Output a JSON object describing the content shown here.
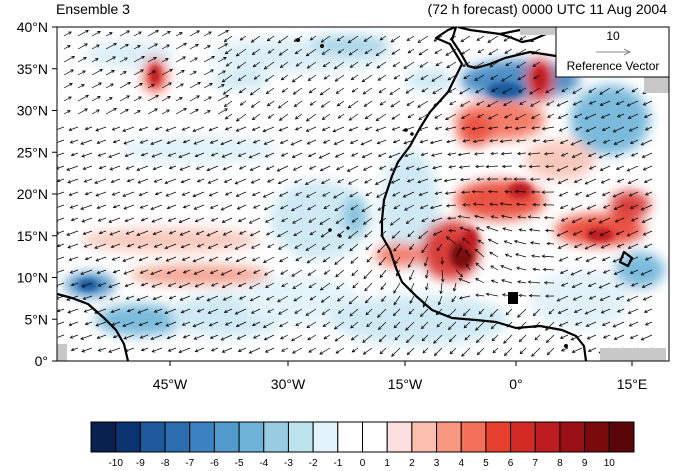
{
  "header": {
    "left_title": "Ensemble 3",
    "right_title": "(72 h forecast) 0000 UTC 11 Aug 2004"
  },
  "map": {
    "region": "North Atlantic / West Africa",
    "lat_labels": [
      "40°N",
      "35°N",
      "30°N",
      "25°N",
      "20°N",
      "15°N",
      "10°N",
      "5°N",
      "0°"
    ],
    "lon_labels": [
      "45°W",
      "30°W",
      "15°W",
      "0°",
      "15°E"
    ]
  },
  "reference_vector": {
    "magnitude": "10",
    "label": "Reference Vector"
  },
  "colorbar": {
    "labels": [
      "-10",
      "-9",
      "-8",
      "-7",
      "-6",
      "-5",
      "-4",
      "-3",
      "-2",
      "-1",
      "0",
      "1",
      "2",
      "3",
      "4",
      "5",
      "6",
      "7",
      "8",
      "9",
      "10"
    ],
    "colors": [
      "#08214e",
      "#0c3471",
      "#1f5a9c",
      "#2d6fae",
      "#3b83c0",
      "#519ccd",
      "#6db3d8",
      "#96cde3",
      "#bde3ef",
      "#e2f3fb",
      "#ffffff",
      "#ffffff",
      "#fcdede",
      "#fbbfb0",
      "#f8977f",
      "#f4705b",
      "#e8402e",
      "#d42a25",
      "#bd1c20",
      "#9a0f16",
      "#7a0a0c",
      "#5a0507"
    ]
  },
  "colors": {
    "land_outline": "#000000",
    "no_data": "#c8c8c8",
    "vector": "#000000"
  },
  "chart_data": {
    "type": "heatmap",
    "title": "(72 h forecast) 0000 UTC 11 Aug 2004",
    "subtitle": "Ensemble 3",
    "xlim": [
      "58°W",
      "20°E"
    ],
    "ylim": [
      "0°",
      "40°N"
    ],
    "color_scale": [
      -10,
      10
    ],
    "overlay": "wind vectors",
    "reference_vector": 10,
    "notable_features": [
      {
        "label": "positive maximum",
        "lat": 13,
        "lon": -7,
        "value": 10
      },
      {
        "label": "positive band",
        "lat": 19,
        "lon": 3,
        "value": 6
      },
      {
        "label": "positive band",
        "lat": 17,
        "lon": 12,
        "value": 6
      },
      {
        "label": "positive maximum",
        "lat": 35,
        "lon": 3,
        "value": 7
      },
      {
        "label": "positive maximum",
        "lat": 28,
        "lon": -4,
        "value": 6
      },
      {
        "label": "positive maximum",
        "lat": 35,
        "lon": -48,
        "value": 6
      },
      {
        "label": "negative minimum",
        "lat": 34,
        "lon": -1,
        "value": -6
      },
      {
        "label": "negative minimum",
        "lat": 10,
        "lon": -54,
        "value": -5
      },
      {
        "label": "negative minimum",
        "lat": 30,
        "lon": 11,
        "value": -5
      },
      {
        "label": "negative minimum",
        "lat": 5,
        "lon": -47,
        "value": -4
      },
      {
        "label": "negative minimum",
        "lat": 37,
        "lon": -32,
        "value": -3
      }
    ]
  }
}
